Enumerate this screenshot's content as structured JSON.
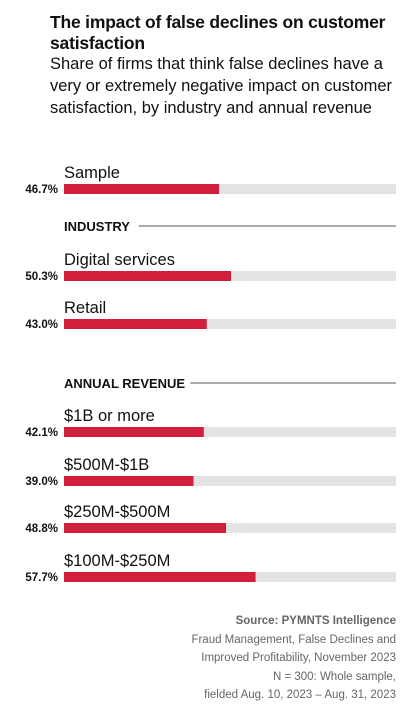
{
  "title": "The impact of false declines on customer satisfaction",
  "subtitle": "Share of firms that think false declines have a very or extremely negative impact on customer satisfaction, by industry and annual revenue",
  "colors": {
    "bar": "#d21f3c",
    "track": "#e3e3e3",
    "rule": "#555555"
  },
  "chart_data": {
    "type": "bar",
    "orientation": "horizontal",
    "xlim": [
      0,
      100
    ],
    "value_suffix": "%",
    "groups": [
      {
        "heading": "",
        "categories": [
          "Sample"
        ],
        "values": [
          46.7
        ]
      },
      {
        "heading": "INDUSTRY",
        "categories": [
          "Digital services",
          "Retail"
        ],
        "values": [
          50.3,
          43.0
        ]
      },
      {
        "heading": "ANNUAL REVENUE",
        "categories": [
          "$1B or more",
          "$500M-$1B",
          "$250M-$500M",
          "$100M-$250M"
        ],
        "values": [
          42.1,
          39.0,
          48.8,
          57.7
        ]
      }
    ]
  },
  "source": {
    "label": "Source: PYMNTS Intelligence",
    "lines": [
      "Fraud Management, False Declines and",
      "Improved Profitability, November 2023",
      "N = 300: Whole sample,",
      "fielded Aug. 10, 2023 – Aug. 31, 2023"
    ]
  }
}
